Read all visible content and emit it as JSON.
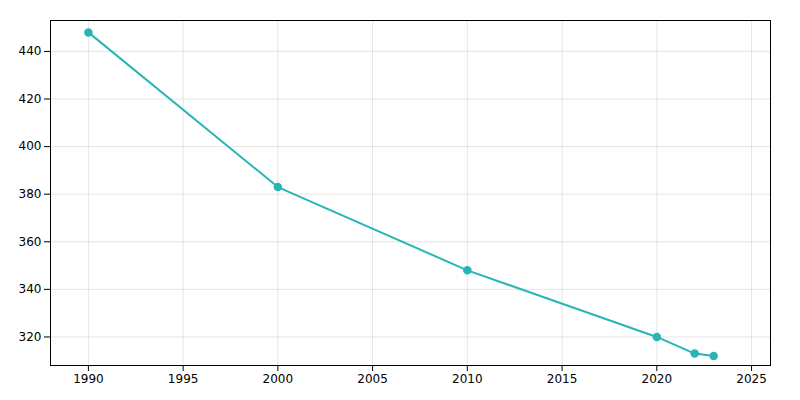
{
  "chart_data": {
    "type": "line",
    "x": [
      1990,
      2000,
      2010,
      2020,
      2022,
      2023
    ],
    "values": [
      448,
      383,
      348,
      320,
      313,
      312
    ],
    "color": "#2ab5b5",
    "marker": "circle",
    "xlim": [
      1988,
      2026
    ],
    "ylim": [
      308,
      453
    ],
    "xticks": [
      1990,
      1995,
      2000,
      2005,
      2010,
      2015,
      2020,
      2025
    ],
    "yticks": [
      320,
      340,
      360,
      380,
      400,
      420,
      440
    ],
    "grid": true
  }
}
